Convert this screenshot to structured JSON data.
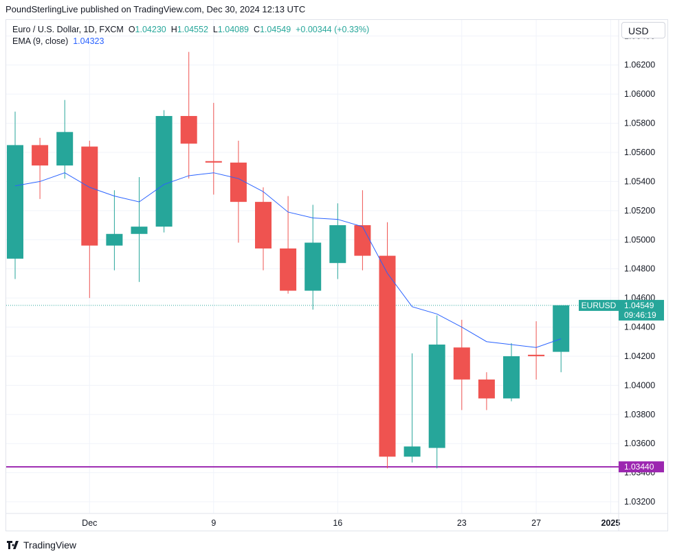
{
  "header": {
    "publisher_line": "PoundSterlingLive published on TradingView.com, Dec 30, 2024 12:13 UTC"
  },
  "legend": {
    "symbol": "Euro / U.S. Dollar, 1D, FXCM",
    "o_label": "O",
    "o_value": "1.04230",
    "h_label": "H",
    "h_value": "1.04552",
    "l_label": "L",
    "l_value": "1.04089",
    "c_label": "C",
    "c_value": "1.04549",
    "change": "+0.00344 (+0.33%)",
    "ema_label": "EMA (9, close)",
    "ema_value": "1.04323"
  },
  "currency_button": "USD",
  "footer": {
    "brand": "TradingView"
  },
  "colors": {
    "up": "#26a69a",
    "down": "#ef5350",
    "ema": "#2962ff",
    "support": "#9c27b0",
    "grid": "#f0f3fa"
  },
  "chart_data": {
    "type": "candlestick",
    "series": [
      {
        "name": "EURUSD",
        "candles": [
          {
            "o": 1.0487,
            "h": 1.0588,
            "l": 1.0473,
            "c": 1.0565
          },
          {
            "o": 1.0565,
            "h": 1.057,
            "l": 1.0528,
            "c": 1.0551
          },
          {
            "o": 1.0551,
            "h": 1.0596,
            "l": 1.0542,
            "c": 1.0574
          },
          {
            "o": 1.0564,
            "h": 1.0568,
            "l": 1.046,
            "c": 1.0496
          },
          {
            "o": 1.0496,
            "h": 1.0534,
            "l": 1.0479,
            "c": 1.0504
          },
          {
            "o": 1.0504,
            "h": 1.0543,
            "l": 1.0471,
            "c": 1.0509
          },
          {
            "o": 1.0509,
            "h": 1.0589,
            "l": 1.0505,
            "c": 1.0585
          },
          {
            "o": 1.0585,
            "h": 1.0629,
            "l": 1.0542,
            "c": 1.0566
          },
          {
            "o": 1.0554,
            "h": 1.0594,
            "l": 1.0531,
            "c": 1.0553
          },
          {
            "o": 1.0553,
            "h": 1.0568,
            "l": 1.0498,
            "c": 1.0526
          },
          {
            "o": 1.0526,
            "h": 1.0536,
            "l": 1.0479,
            "c": 1.0494
          },
          {
            "o": 1.0494,
            "h": 1.053,
            "l": 1.0463,
            "c": 1.0465
          },
          {
            "o": 1.0465,
            "h": 1.0524,
            "l": 1.0452,
            "c": 1.0498
          },
          {
            "o": 1.0484,
            "h": 1.0525,
            "l": 1.0473,
            "c": 1.051
          },
          {
            "o": 1.051,
            "h": 1.0534,
            "l": 1.0479,
            "c": 1.0489
          },
          {
            "o": 1.0489,
            "h": 1.0512,
            "l": 1.0343,
            "c": 1.0351
          },
          {
            "o": 1.0351,
            "h": 1.0422,
            "l": 1.0347,
            "c": 1.0358
          },
          {
            "o": 1.0357,
            "h": 1.0448,
            "l": 1.0343,
            "c": 1.0428
          },
          {
            "o": 1.0426,
            "h": 1.0445,
            "l": 1.0383,
            "c": 1.0404
          },
          {
            "o": 1.0404,
            "h": 1.0409,
            "l": 1.0383,
            "c": 1.0391
          },
          {
            "o": 1.0391,
            "h": 1.0429,
            "l": 1.0389,
            "c": 1.042
          },
          {
            "o": 1.0421,
            "h": 1.0444,
            "l": 1.0404,
            "c": 1.042
          },
          {
            "o": 1.0423,
            "h": 1.0455,
            "l": 1.0409,
            "c": 1.0455
          }
        ]
      },
      {
        "name": "EMA (9, close)",
        "values": [
          1.0537,
          1.054,
          1.0546,
          1.0536,
          1.053,
          1.0526,
          1.0538,
          1.0544,
          1.0546,
          1.0542,
          1.0533,
          1.0519,
          1.0515,
          1.0514,
          1.0509,
          1.0477,
          1.0454,
          1.0449,
          1.044,
          1.043,
          1.0428,
          1.0426,
          1.0432
        ]
      }
    ],
    "x_tick_labels": [
      {
        "index": 3,
        "label": "Dec"
      },
      {
        "index": 8,
        "label": "9"
      },
      {
        "index": 13,
        "label": "16"
      },
      {
        "index": 18,
        "label": "23"
      },
      {
        "index": 21,
        "label": "27"
      },
      {
        "index": 24,
        "label": "2025"
      }
    ],
    "y_tick_values": [
      "1.06400",
      "1.06200",
      "1.06000",
      "1.05800",
      "1.05600",
      "1.05400",
      "1.05200",
      "1.05000",
      "1.04800",
      "1.04600",
      "1.04400",
      "1.04200",
      "1.04000",
      "1.03800",
      "1.03600",
      "1.03400",
      "1.03200"
    ],
    "ylim": [
      1.0312,
      1.0651
    ],
    "last_price_label": {
      "symbol": "EURUSD",
      "price": "1.04549",
      "countdown": "09:46:19",
      "value": 1.04549
    },
    "support_line": {
      "value": 1.0344,
      "label": "1.03440"
    },
    "grid": true
  }
}
